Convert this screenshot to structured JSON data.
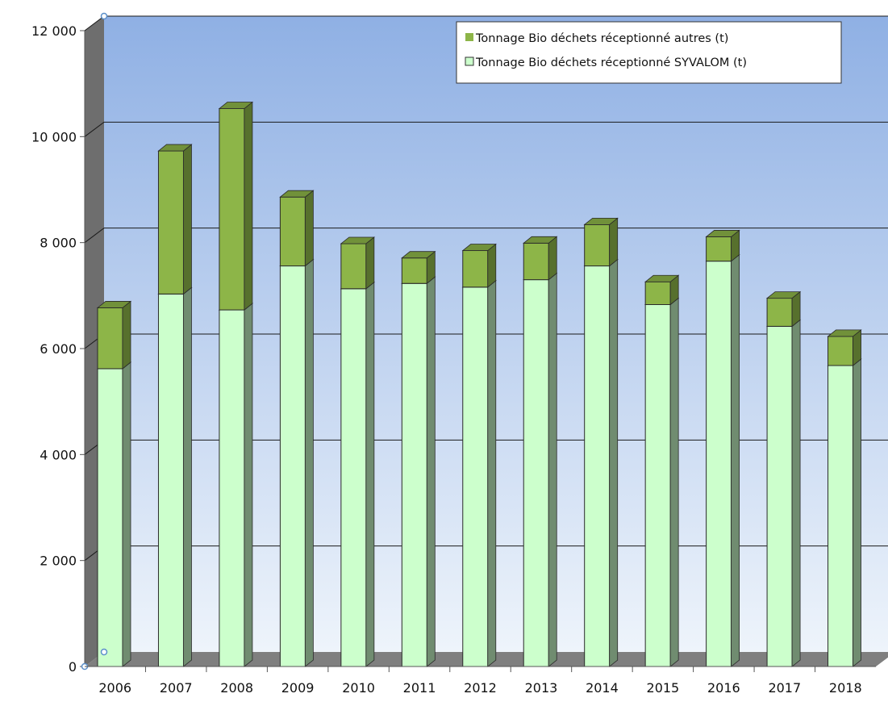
{
  "chart_data": {
    "type": "bar",
    "stacked": true,
    "view": "3d",
    "categories": [
      "2006",
      "2007",
      "2008",
      "2009",
      "2010",
      "2011",
      "2012",
      "2013",
      "2014",
      "2015",
      "2016",
      "2017",
      "2018"
    ],
    "series": [
      {
        "name": "Tonnage Bio déchets réceptionné SYVALOM (t)",
        "color": "#ccffcc",
        "values": [
          5620,
          7030,
          6730,
          7560,
          7130,
          7230,
          7160,
          7300,
          7560,
          6830,
          7650,
          6420,
          5680
        ]
      },
      {
        "name": "Tonnage Bio déchets réceptionné autres (t)",
        "color": "#8db548",
        "values": [
          1150,
          2700,
          3800,
          1300,
          850,
          480,
          690,
          690,
          780,
          430,
          460,
          530,
          550
        ]
      }
    ],
    "ylim": [
      0,
      12000
    ],
    "yticks": [
      0,
      2000,
      4000,
      6000,
      8000,
      10000,
      12000
    ],
    "ytick_labels": [
      "0",
      "2 000",
      "4 000",
      "6 000",
      "8 000",
      "10 000",
      "12 000"
    ],
    "grid": true,
    "legend_position": "top-right",
    "legend_order": [
      "Tonnage Bio déchets réceptionné autres (t)",
      "Tonnage Bio déchets réceptionné SYVALOM (t)"
    ],
    "wall_gradient": [
      "#8fb0e4",
      "#eef4fb"
    ],
    "floor_color": "#7f7f7f",
    "title": "",
    "xlabel": "",
    "ylabel": ""
  }
}
